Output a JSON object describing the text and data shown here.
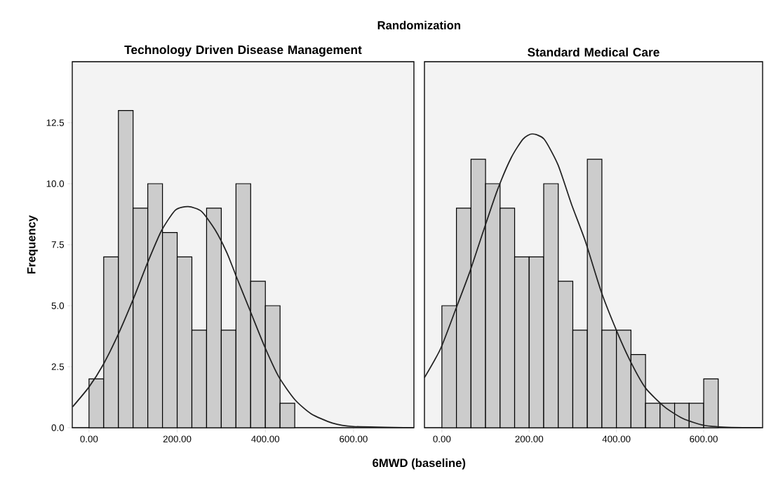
{
  "chart_data": [
    {
      "type": "histogram",
      "title": "Technology Driven Disease Management",
      "xlabel": "6MWD (baseline)",
      "ylabel": "Frequency",
      "annotations": [
        "Randomization"
      ],
      "bins": [
        0,
        33.33,
        66.67,
        100,
        133.33,
        166.67,
        200,
        233.33,
        266.67,
        300,
        333.33,
        366.67,
        400,
        433.33,
        466.67
      ],
      "values": [
        2,
        7,
        13,
        9,
        10,
        8,
        7,
        4,
        9,
        4,
        10,
        6,
        5,
        1
      ],
      "color": "#cccccc",
      "series": [
        {
          "type": "line",
          "color": "#222222",
          "x": [
            -37,
            0,
            32,
            66,
            101,
            133,
            164,
            196,
            225,
            255,
            286,
            313,
            334,
            366,
            398,
            430,
            467,
            504,
            552,
            600,
            737
          ],
          "values": [
            0.86,
            1.67,
            2.58,
            3.82,
            5.3,
            6.77,
            8.06,
            8.92,
            9.06,
            8.87,
            8.11,
            7.16,
            6.2,
            4.77,
            3.34,
            2.1,
            1.15,
            0.57,
            0.19,
            0.05,
            0
          ]
        }
      ],
      "xlim": [
        -38,
        737
      ],
      "ylim": [
        0,
        15
      ],
      "xticks": [
        {
          "value": 0,
          "label": "0.00"
        },
        {
          "value": 200,
          "label": "200.00"
        },
        {
          "value": 400,
          "label": "400.00"
        },
        {
          "value": 600,
          "label": "600.00"
        }
      ],
      "yticks": [
        {
          "value": 0,
          "label": "0.0"
        },
        {
          "value": 2.5,
          "label": "2.5"
        },
        {
          "value": 5,
          "label": "5.0"
        },
        {
          "value": 7.5,
          "label": "7.5"
        },
        {
          "value": 10,
          "label": "10.0"
        },
        {
          "value": 12.5,
          "label": "12.5"
        }
      ]
    },
    {
      "type": "histogram",
      "title": "Standard Medical Care",
      "bins": [
        0,
        33.33,
        66.67,
        100,
        133.33,
        166.67,
        200,
        233.33,
        266.67,
        300,
        333.33,
        366.67,
        400,
        433.33,
        466.67,
        500,
        533.33,
        566.67,
        600,
        633.33
      ],
      "values": [
        5,
        9,
        11,
        10,
        9,
        7,
        7,
        10,
        6,
        4,
        11,
        4,
        4,
        3,
        1,
        1,
        1,
        1,
        2
      ],
      "color": "#cccccc",
      "series": [
        {
          "type": "line",
          "color": "#222222",
          "x": [
            -40,
            -3,
            32,
            64,
            96,
            127,
            159,
            186,
            207,
            234,
            266,
            297,
            329,
            366,
            404,
            436,
            467,
            510,
            552,
            600,
            653,
            731
          ],
          "values": [
            2.05,
            3.24,
            4.87,
            6.39,
            8.11,
            9.73,
            11.07,
            11.83,
            12.04,
            11.83,
            10.78,
            9.16,
            7.63,
            5.53,
            3.82,
            2.58,
            1.62,
            0.86,
            0.38,
            0.1,
            0.02,
            0
          ]
        }
      ],
      "xlim": [
        -40,
        735
      ],
      "ylim": [
        0,
        15
      ],
      "tick_labels": "x",
      "xticks": [
        {
          "value": 0,
          "label": "0.00"
        },
        {
          "value": 200,
          "label": "200.00"
        },
        {
          "value": 400,
          "label": "400.00"
        },
        {
          "value": 600,
          "label": "600.00"
        }
      ]
    }
  ]
}
